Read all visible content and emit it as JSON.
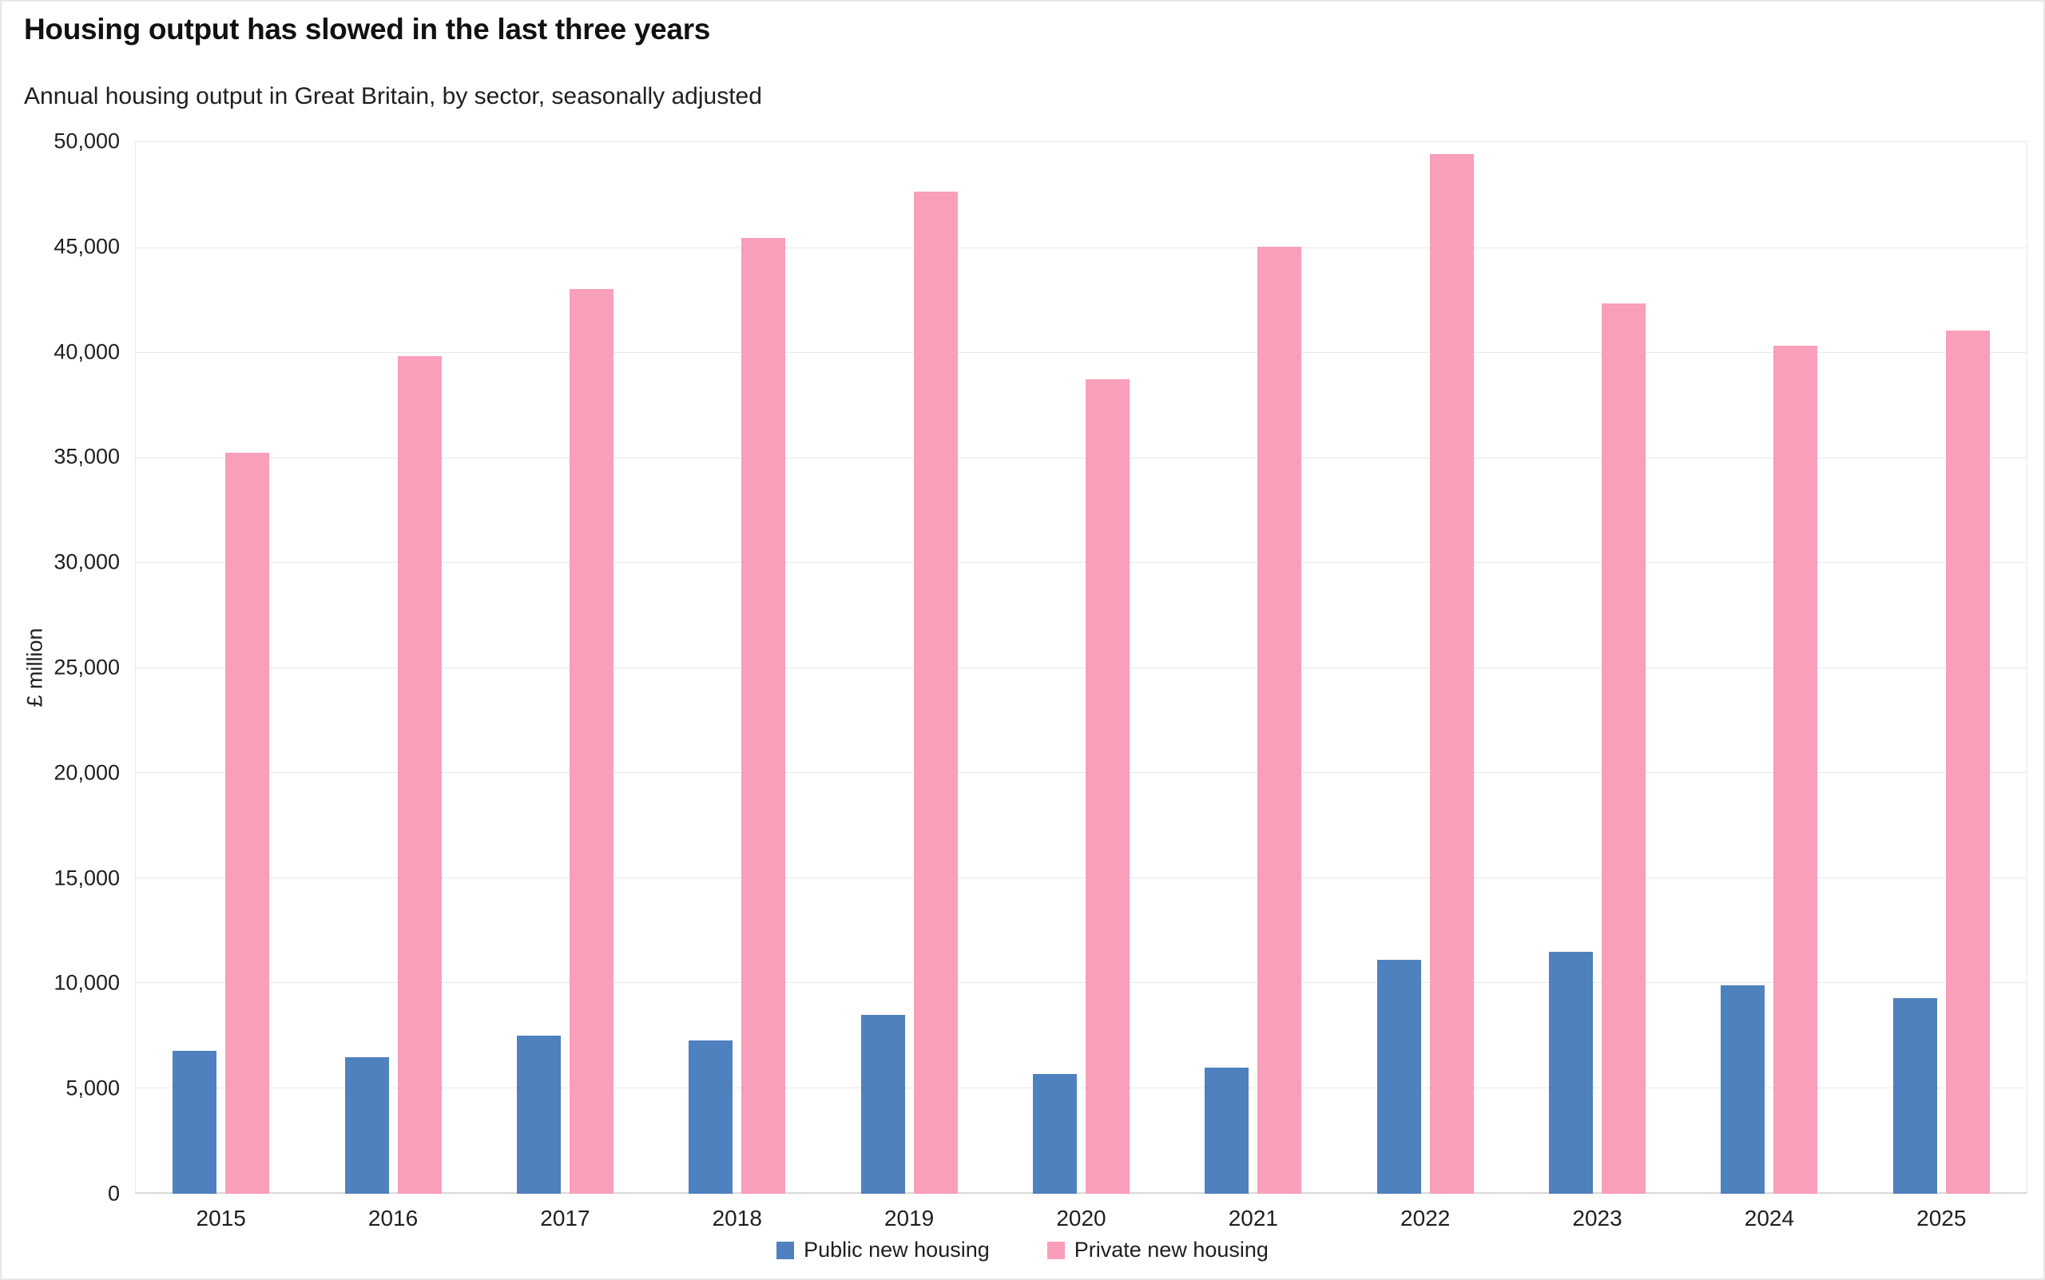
{
  "title": "Housing output has slowed in the last three years",
  "subtitle": "Annual housing output in Great Britain, by sector, seasonally adjusted",
  "chart_data": {
    "type": "bar",
    "title": "Housing output has slowed in the last three years",
    "subtitle": "Annual housing output in Great Britain, by sector, seasonally adjusted",
    "xlabel": "",
    "ylabel": "£ million",
    "ylim": [
      0,
      50000
    ],
    "ytick_step": 5000,
    "ytick_labels": [
      "0",
      "5,000",
      "10,000",
      "15,000",
      "20,000",
      "25,000",
      "30,000",
      "35,000",
      "40,000",
      "45,000",
      "50,000"
    ],
    "grid": true,
    "legend_position": "bottom-center",
    "categories": [
      "2015",
      "2016",
      "2017",
      "2018",
      "2019",
      "2020",
      "2021",
      "2022",
      "2023",
      "2024",
      "2025"
    ],
    "series": [
      {
        "name": "Public new housing",
        "color": "#4E81BD",
        "values": [
          6800,
          6500,
          7500,
          7300,
          8500,
          5700,
          6000,
          11100,
          11500,
          9900,
          9300
        ]
      },
      {
        "name": "Private new housing",
        "color": "#F99FB9",
        "values": [
          35200,
          39800,
          43000,
          45400,
          47600,
          38700,
          45000,
          49400,
          42300,
          40300,
          41000
        ]
      }
    ]
  },
  "colors": {
    "background": "#FFFFFF",
    "gridline": "#E8E8E8",
    "axis_line": "#D9D9D9",
    "frame_border": "#E7E7E7",
    "text": "#1A1A1A",
    "public_series": "#4E81BD",
    "private_series": "#F99FB9"
  }
}
